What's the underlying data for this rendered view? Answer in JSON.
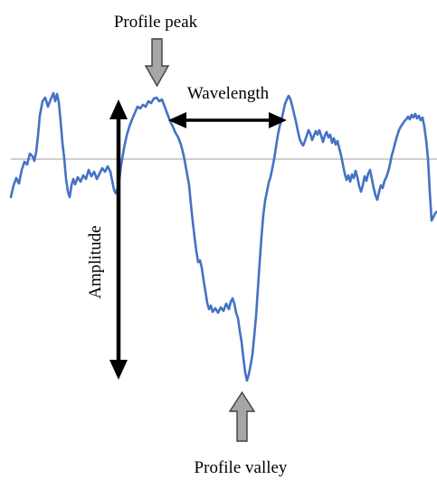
{
  "labels": {
    "peak": "Profile peak",
    "wavelength": "Wavelength",
    "amplitude": "Amplitude",
    "valley": "Profile valley"
  },
  "colors": {
    "profile_line": "#4472c4",
    "baseline": "#bfbfbf",
    "pointer_fill": "#a6a6a6",
    "pointer_stroke": "#404040",
    "dimension_arrows": "#000000"
  },
  "icons": {
    "peak_pointer": "down-arrow-icon",
    "valley_pointer": "up-arrow-icon",
    "wavelength_arrow": "double-headed-horizontal-arrow",
    "amplitude_arrow": "double-headed-vertical-arrow"
  }
}
